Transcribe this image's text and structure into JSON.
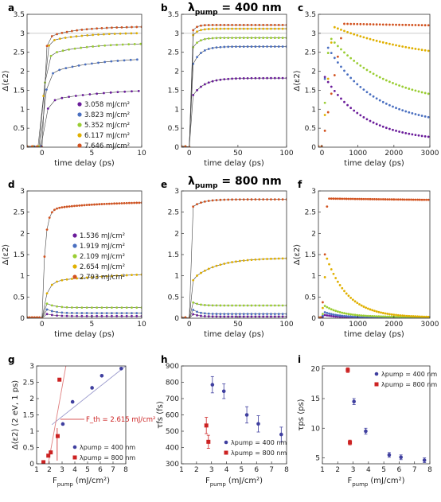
{
  "row_titles": {
    "top": {
      "pre": "λ",
      "sub": "pump",
      "post": " = 400 nm"
    },
    "middle": {
      "pre": "λ",
      "sub": "pump",
      "post": " = 800 nm"
    }
  },
  "chart_data": [
    {
      "panel": "a",
      "type": "scatter",
      "xlabel": "time delay (ps)",
      "ylabel": "Δ⟨ε2⟩",
      "xlim": [
        -1.5,
        10
      ],
      "ylim": [
        0,
        3.5
      ],
      "xticks": [
        0,
        5,
        10
      ],
      "yticks": [
        0,
        0.5,
        1,
        1.5,
        2,
        2.5,
        3,
        3.5
      ],
      "ref_line": 3,
      "legend_position": "bottom-right",
      "series": [
        {
          "name": "3.058 mJ/cm²",
          "color": "#6a1b9a",
          "kind": "rise",
          "plateau": 1.55,
          "early": 1.2,
          "tau": 6,
          "step": 0.7
        },
        {
          "name": "3.823 mJ/cm²",
          "color": "#4a6fc0",
          "kind": "rise",
          "plateau": 2.38,
          "early": 1.9,
          "tau": 5,
          "step": 0.65
        },
        {
          "name": "5.352 mJ/cm²",
          "color": "#9acd32",
          "kind": "rise",
          "plateau": 2.75,
          "early": 2.4,
          "tau": 4,
          "step": 0.6
        },
        {
          "name": "6.117 mJ/cm²",
          "color": "#e0b000",
          "kind": "rise",
          "plateau": 3.02,
          "early": 2.75,
          "tau": 3.5,
          "step": 0.55
        },
        {
          "name": "7.646 mJ/cm²",
          "color": "#d2521f",
          "kind": "rise",
          "plateau": 3.18,
          "early": 2.85,
          "tau": 3,
          "step": 0.5
        }
      ]
    },
    {
      "panel": "b",
      "type": "scatter",
      "xlabel": "time delay (ps)",
      "ylabel": "",
      "xlim": [
        -8,
        100
      ],
      "ylim": [
        0,
        3.5
      ],
      "xticks": [
        0,
        50,
        100
      ],
      "yticks": [
        0,
        0.5,
        1,
        1.5,
        2,
        2.5,
        3,
        3.5
      ],
      "ref_line": 3,
      "series": [
        {
          "name": "3.058 mJ/cm²",
          "color": "#6a1b9a",
          "kind": "rise",
          "plateau": 1.82,
          "early": 1.2,
          "tau": 12,
          "step": 4
        },
        {
          "name": "3.823 mJ/cm²",
          "color": "#4a6fc0",
          "kind": "rise",
          "plateau": 2.65,
          "early": 1.9,
          "tau": 8,
          "step": 4
        },
        {
          "name": "5.352 mJ/cm²",
          "color": "#9acd32",
          "kind": "rise",
          "plateau": 2.88,
          "early": 2.4,
          "tau": 6,
          "step": 4
        },
        {
          "name": "6.117 mJ/cm²",
          "color": "#e0b000",
          "kind": "rise",
          "plateau": 3.12,
          "early": 2.75,
          "tau": 5,
          "step": 4
        },
        {
          "name": "7.646 mJ/cm²",
          "color": "#d2521f",
          "kind": "rise",
          "plateau": 3.22,
          "early": 2.85,
          "tau": 4,
          "step": 4
        }
      ]
    },
    {
      "panel": "c",
      "type": "scatter",
      "xlabel": "time delay (ps)",
      "ylabel": "Δ⟨ε2⟩",
      "xlim": [
        -100,
        3000
      ],
      "ylim": [
        0,
        3.5
      ],
      "xticks": [
        0,
        1000,
        2000,
        3000
      ],
      "yticks": [
        0,
        0.5,
        1,
        1.5,
        2,
        2.5,
        3,
        3.5
      ],
      "ref_line": 3,
      "series": [
        {
          "name": "3.058 mJ/cm²",
          "color": "#6a1b9a",
          "kind": "decay",
          "peak": 1.85,
          "end": 0.15,
          "tpeak": 80,
          "tau": 1100,
          "step": 90
        },
        {
          "name": "3.823 mJ/cm²",
          "color": "#4a6fc0",
          "kind": "decay",
          "peak": 2.7,
          "end": 0.55,
          "tpeak": 120,
          "tau": 1300,
          "step": 90
        },
        {
          "name": "5.352 mJ/cm²",
          "color": "#9acd32",
          "kind": "decay",
          "peak": 2.92,
          "end": 1.08,
          "tpeak": 200,
          "tau": 1600,
          "step": 90
        },
        {
          "name": "6.117 mJ/cm²",
          "color": "#e0b000",
          "kind": "decay",
          "peak": 3.18,
          "end": 2.2,
          "tpeak": 300,
          "tau": 2500,
          "step": 90
        },
        {
          "name": "7.646 mJ/cm²",
          "color": "#d2521f",
          "kind": "decay",
          "peak": 3.25,
          "end": 3.1,
          "tpeak": 600,
          "tau": 8000,
          "step": 90
        }
      ]
    },
    {
      "panel": "d",
      "type": "scatter",
      "xlabel": "time delay (ps)",
      "ylabel": "Δ⟨ε2⟩",
      "xlim": [
        -1.5,
        10
      ],
      "ylim": [
        0,
        3
      ],
      "xticks": [
        0,
        5,
        10
      ],
      "yticks": [
        0,
        0.5,
        1,
        1.5,
        2,
        2.5,
        3
      ],
      "legend_position": "middle-right",
      "series": [
        {
          "name": "1.536 mJ/cm²",
          "color": "#6a1b9a",
          "kind": "spike",
          "plateau": 0.05,
          "spike": 0.15,
          "step": 0.5
        },
        {
          "name": "1.919 mJ/cm²",
          "color": "#4a6fc0",
          "kind": "spike",
          "plateau": 0.12,
          "spike": 0.3,
          "step": 0.5
        },
        {
          "name": "2.109 mJ/cm²",
          "color": "#9acd32",
          "kind": "spike",
          "plateau": 0.25,
          "spike": 0.45,
          "step": 0.5
        },
        {
          "name": "2.654 mJ/cm²",
          "color": "#e0b000",
          "kind": "rise",
          "plateau": 1.1,
          "early": 0.85,
          "tau": 8,
          "step": 0.5
        },
        {
          "name": "2.793 mJ/cm²",
          "color": "#d2521f",
          "kind": "rise",
          "plateau": 2.75,
          "early": 2.55,
          "tau": 5,
          "step": 0.25
        }
      ]
    },
    {
      "panel": "e",
      "type": "scatter",
      "xlabel": "time delay (ps)",
      "ylabel": "",
      "xlim": [
        -8,
        100
      ],
      "ylim": [
        0,
        3
      ],
      "xticks": [
        0,
        50,
        100
      ],
      "yticks": [
        0,
        0.5,
        1,
        1.5,
        2,
        2.5,
        3
      ],
      "series": [
        {
          "name": "1.536 mJ/cm²",
          "color": "#6a1b9a",
          "kind": "spike",
          "plateau": 0.04,
          "spike": 0.15,
          "step": 4
        },
        {
          "name": "1.919 mJ/cm²",
          "color": "#4a6fc0",
          "kind": "spike",
          "plateau": 0.1,
          "spike": 0.3,
          "step": 4
        },
        {
          "name": "2.109 mJ/cm²",
          "color": "#9acd32",
          "kind": "spike",
          "plateau": 0.3,
          "spike": 0.45,
          "step": 4
        },
        {
          "name": "2.654 mJ/cm²",
          "color": "#e0b000",
          "kind": "rise",
          "plateau": 1.42,
          "early": 0.85,
          "tau": 25,
          "step": 4
        },
        {
          "name": "2.793 mJ/cm²",
          "color": "#d2521f",
          "kind": "rise",
          "plateau": 2.8,
          "early": 2.55,
          "tau": 10,
          "step": 4
        }
      ]
    },
    {
      "panel": "f",
      "type": "scatter",
      "xlabel": "time delay (ps)",
      "ylabel": "Δ⟨ε2⟩",
      "xlim": [
        -100,
        3000
      ],
      "ylim": [
        0,
        3
      ],
      "xticks": [
        0,
        1000,
        2000,
        3000
      ],
      "yticks": [
        0,
        0.5,
        1,
        1.5,
        2,
        2.5,
        3
      ],
      "series": [
        {
          "name": "1.536 mJ/cm²",
          "color": "#6a1b9a",
          "kind": "decay",
          "peak": 0.08,
          "end": 0.01,
          "tpeak": 50,
          "tau": 400,
          "step": 60
        },
        {
          "name": "1.919 mJ/cm²",
          "color": "#4a6fc0",
          "kind": "decay",
          "peak": 0.15,
          "end": 0.02,
          "tpeak": 50,
          "tau": 400,
          "step": 60
        },
        {
          "name": "2.109 mJ/cm²",
          "color": "#9acd32",
          "kind": "decay",
          "peak": 0.3,
          "end": 0.03,
          "tpeak": 60,
          "tau": 500,
          "step": 60
        },
        {
          "name": "2.654 mJ/cm²",
          "color": "#e0b000",
          "kind": "decay",
          "peak": 1.45,
          "end": 0.02,
          "tpeak": 120,
          "tau": 600,
          "step": 60
        },
        {
          "name": "2.793 mJ/cm²",
          "color": "#d2521f",
          "kind": "decay",
          "peak": 2.82,
          "end": 2.72,
          "tpeak": 150,
          "tau": 8000,
          "step": 60
        }
      ]
    },
    {
      "panel": "g",
      "type": "scatter",
      "xlabel": "F_pump (mJ/cm²)",
      "ylabel": "Δ⟨ε2⟩ (2 eV, 1 ps)",
      "xlim": [
        1,
        8
      ],
      "ylim": [
        0,
        3
      ],
      "xticks": [
        1,
        2,
        3,
        4,
        5,
        6,
        7,
        8
      ],
      "yticks": [
        0,
        0.5,
        1,
        1.5,
        2,
        2.5,
        3
      ],
      "legend_position": "bottom-right",
      "annotation": {
        "text": "F_th = 2.615 mJ/cm²",
        "value": 2.615
      },
      "series": [
        {
          "name": "λpump = 400 nm",
          "color": "#3f3f9f",
          "marker": "circle",
          "x": [
            3.058,
            3.823,
            5.352,
            6.117,
            7.646
          ],
          "y": [
            1.22,
            1.9,
            2.33,
            2.7,
            2.92
          ]
        },
        {
          "name": "λpump = 800 nm",
          "color": "#cc2222",
          "marker": "square",
          "x": [
            1.536,
            1.919,
            2.109,
            2.654,
            2.793
          ],
          "y": [
            0.05,
            0.25,
            0.35,
            0.85,
            2.58
          ]
        }
      ],
      "fit_lines": [
        {
          "series": 0,
          "color": "#9999cc",
          "x": [
            2.2,
            8
          ],
          "y": [
            1.2,
            3.0
          ]
        },
        {
          "series": 1,
          "color": "#e08080",
          "x": [
            1.5,
            3.3
          ],
          "y": [
            -0.9,
            3.0
          ]
        }
      ]
    },
    {
      "panel": "h",
      "type": "scatter",
      "xlabel": "F_pump (mJ/cm²)",
      "ylabel": "τ_fs (fs)",
      "xlim": [
        1,
        8
      ],
      "ylim": [
        300,
        900
      ],
      "xticks": [
        1,
        2,
        3,
        4,
        5,
        6,
        7,
        8
      ],
      "yticks": [
        300,
        400,
        500,
        600,
        700,
        800,
        900
      ],
      "legend_position": "bottom-right",
      "series": [
        {
          "name": "λpump = 400 nm",
          "color": "#3f3f9f",
          "marker": "circle",
          "x": [
            3.058,
            3.823,
            5.352,
            6.117,
            7.646
          ],
          "y": [
            785,
            745,
            600,
            545,
            480
          ],
          "err": [
            50,
            45,
            50,
            50,
            45
          ]
        },
        {
          "name": "λpump = 800 nm",
          "color": "#cc2222",
          "marker": "square",
          "x": [
            2.654,
            2.793
          ],
          "y": [
            535,
            435
          ],
          "err": [
            50,
            40
          ]
        }
      ]
    },
    {
      "panel": "i",
      "type": "scatter",
      "xlabel": "F_pump (mJ/cm²)",
      "ylabel": "τ_ps (ps)",
      "xlim": [
        1,
        8
      ],
      "ylim": [
        4,
        20.5
      ],
      "xticks": [
        1,
        2,
        3,
        4,
        5,
        6,
        7,
        8
      ],
      "yticks": [
        5,
        10,
        15,
        20
      ],
      "legend_position": "top-right",
      "series": [
        {
          "name": "λpump = 400 nm",
          "color": "#3f3f9f",
          "marker": "circle",
          "x": [
            3.058,
            3.823,
            5.352,
            6.117,
            7.646
          ],
          "y": [
            14.5,
            9.5,
            5.5,
            5.1,
            4.6
          ],
          "err": [
            0.5,
            0.5,
            0.4,
            0.4,
            0.4
          ]
        },
        {
          "name": "λpump = 800 nm",
          "color": "#cc2222",
          "marker": "square",
          "x": [
            2.654,
            2.793
          ],
          "y": [
            19.8,
            7.6
          ],
          "err": [
            0.4,
            0.4
          ]
        }
      ]
    }
  ]
}
